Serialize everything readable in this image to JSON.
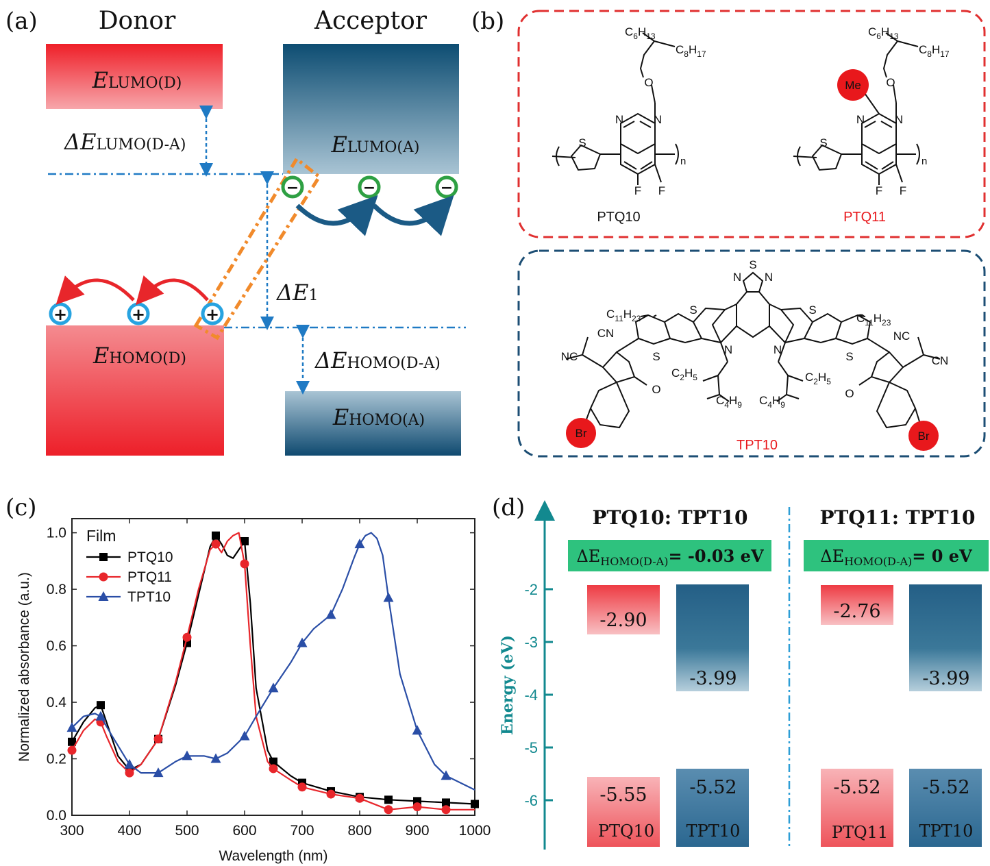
{
  "panels": {
    "a": {
      "label": "(a)",
      "donor_title": "Donor",
      "acceptor_title": "Acceptor",
      "lumo_d": {
        "main": "E",
        "sub": "LUMO(D)"
      },
      "lumo_a": {
        "main": "E",
        "sub": "LUMO(A)"
      },
      "homo_d": {
        "main": "E",
        "sub": "HOMO(D)"
      },
      "homo_a": {
        "main": "E",
        "sub": "HOMO(A)"
      },
      "delta_lumo": {
        "main": "ΔE",
        "sub": "LUMO(D-A)"
      },
      "delta_homo": {
        "main": "ΔE",
        "sub": "HOMO(D-A)"
      },
      "delta_e1": {
        "main": "ΔE",
        "sub": "1"
      },
      "electron_symbol": "−",
      "hole_symbol": "+"
    },
    "b": {
      "label": "(b)",
      "ptq10": {
        "name": "PTQ10",
        "c6h13": [
          "C",
          "6",
          "H",
          "13"
        ],
        "c8h17": [
          "C",
          "8",
          "H",
          "17"
        ],
        "O": "O",
        "N": "N",
        "S": "S",
        "F": "F",
        "n": "n"
      },
      "ptq11": {
        "name": "PTQ11",
        "me": "Me",
        "c6h13": [
          "C",
          "6",
          "H",
          "13"
        ],
        "c8h17": [
          "C",
          "8",
          "H",
          "17"
        ],
        "O": "O",
        "N": "N",
        "S": "S",
        "F": "F",
        "n": "n"
      },
      "tpt10": {
        "name": "TPT10",
        "c11h23": [
          "C",
          "11",
          "H",
          "23"
        ],
        "c2h5": [
          "C",
          "2",
          "H",
          "5"
        ],
        "c4h9": [
          "C",
          "4",
          "H",
          "9"
        ],
        "nc": "NC",
        "cn": "CN",
        "br": "Br",
        "O": "O",
        "N": "N",
        "S": "S"
      },
      "colors": {
        "ptq_box": "#e03030",
        "tpt_box": "#1c4e74",
        "highlight": "#e8181c"
      }
    },
    "c": {
      "label": "(c)"
    },
    "d": {
      "label": "(d)",
      "ylabel": "Energy (eV)",
      "yticks": [
        "-2",
        "-3",
        "-4",
        "-5",
        "-6"
      ],
      "left": {
        "title": "PTQ10: TPT10",
        "delta_prefix": "ΔE",
        "delta_sub": "HOMO(D-A)",
        "delta_value": "= -0.03 eV",
        "donor_lumo": "-2.90",
        "acceptor_lumo": "-3.99",
        "donor_homo": "-5.55",
        "acceptor_homo": "-5.52",
        "donor_name": "PTQ10",
        "acceptor_name": "TPT10"
      },
      "right": {
        "title": "PTQ11: TPT10",
        "delta_prefix": "ΔE",
        "delta_sub": "HOMO(D-A)",
        "delta_value": "= 0 eV",
        "donor_lumo": "-2.76",
        "acceptor_lumo": "-3.99",
        "donor_homo": "-5.52",
        "acceptor_homo": "-5.52",
        "donor_name": "PTQ11",
        "acceptor_name": "TPT10"
      },
      "colors": {
        "donor": "#ef5a60",
        "acceptor": "#2d6e92",
        "banner": "#2ec27e",
        "axis": "#12898f"
      }
    }
  },
  "chart_data": {
    "type": "line",
    "xlabel": "Wavelength (nm)",
    "ylabel": "Normalized absorbance (a.u.)",
    "legend_title": "Film",
    "legend_position": "top-left",
    "xlim": [
      300,
      1000
    ],
    "ylim": [
      0.0,
      1.05
    ],
    "xticks": [
      300,
      400,
      500,
      600,
      700,
      800,
      900,
      1000
    ],
    "yticks": [
      0.0,
      0.2,
      0.4,
      0.6,
      0.8,
      1.0
    ],
    "grid": false,
    "series": [
      {
        "name": "PTQ10",
        "color": "#000000",
        "marker": "square",
        "x": [
          300,
          320,
          340,
          350,
          360,
          380,
          400,
          420,
          450,
          480,
          500,
          520,
          540,
          550,
          560,
          570,
          580,
          590,
          600,
          610,
          620,
          640,
          650,
          680,
          700,
          750,
          800,
          850,
          900,
          950,
          1000
        ],
        "y": [
          0.26,
          0.33,
          0.38,
          0.39,
          0.33,
          0.21,
          0.16,
          0.18,
          0.27,
          0.46,
          0.61,
          0.78,
          0.95,
          0.99,
          0.96,
          0.92,
          0.91,
          0.94,
          0.97,
          0.75,
          0.45,
          0.23,
          0.19,
          0.14,
          0.115,
          0.085,
          0.065,
          0.055,
          0.05,
          0.045,
          0.04
        ],
        "marker_x": [
          300,
          350,
          400,
          450,
          500,
          550,
          600,
          650,
          700,
          750,
          800,
          850,
          900,
          950,
          1000
        ]
      },
      {
        "name": "PTQ11",
        "color": "#e8262b",
        "marker": "circle",
        "x": [
          300,
          320,
          340,
          350,
          360,
          380,
          400,
          420,
          450,
          480,
          500,
          520,
          540,
          550,
          560,
          570,
          580,
          590,
          600,
          610,
          620,
          640,
          650,
          680,
          700,
          750,
          800,
          850,
          900,
          950,
          1000
        ],
        "y": [
          0.23,
          0.3,
          0.34,
          0.33,
          0.28,
          0.19,
          0.15,
          0.18,
          0.27,
          0.47,
          0.63,
          0.8,
          0.94,
          0.96,
          0.93,
          0.97,
          0.99,
          1.0,
          0.89,
          0.6,
          0.35,
          0.19,
          0.165,
          0.125,
          0.1,
          0.075,
          0.06,
          0.02,
          0.03,
          0.02,
          0.02
        ],
        "marker_x": [
          300,
          350,
          400,
          450,
          500,
          550,
          600,
          650,
          700,
          750,
          800,
          850,
          900,
          950
        ]
      },
      {
        "name": "TPT10",
        "color": "#2a4ea6",
        "marker": "triangle",
        "x": [
          300,
          320,
          340,
          350,
          370,
          400,
          420,
          450,
          480,
          500,
          530,
          550,
          570,
          600,
          620,
          650,
          680,
          700,
          720,
          750,
          770,
          790,
          800,
          810,
          820,
          830,
          840,
          850,
          870,
          900,
          930,
          950,
          980,
          1000
        ],
        "y": [
          0.31,
          0.35,
          0.36,
          0.35,
          0.28,
          0.18,
          0.15,
          0.15,
          0.19,
          0.21,
          0.21,
          0.2,
          0.22,
          0.28,
          0.35,
          0.45,
          0.54,
          0.61,
          0.66,
          0.71,
          0.8,
          0.91,
          0.96,
          0.99,
          1.0,
          0.98,
          0.92,
          0.77,
          0.5,
          0.3,
          0.18,
          0.14,
          0.11,
          0.09
        ],
        "marker_x": [
          300,
          350,
          400,
          450,
          500,
          550,
          600,
          650,
          700,
          750,
          800,
          850,
          900,
          950
        ]
      }
    ]
  }
}
